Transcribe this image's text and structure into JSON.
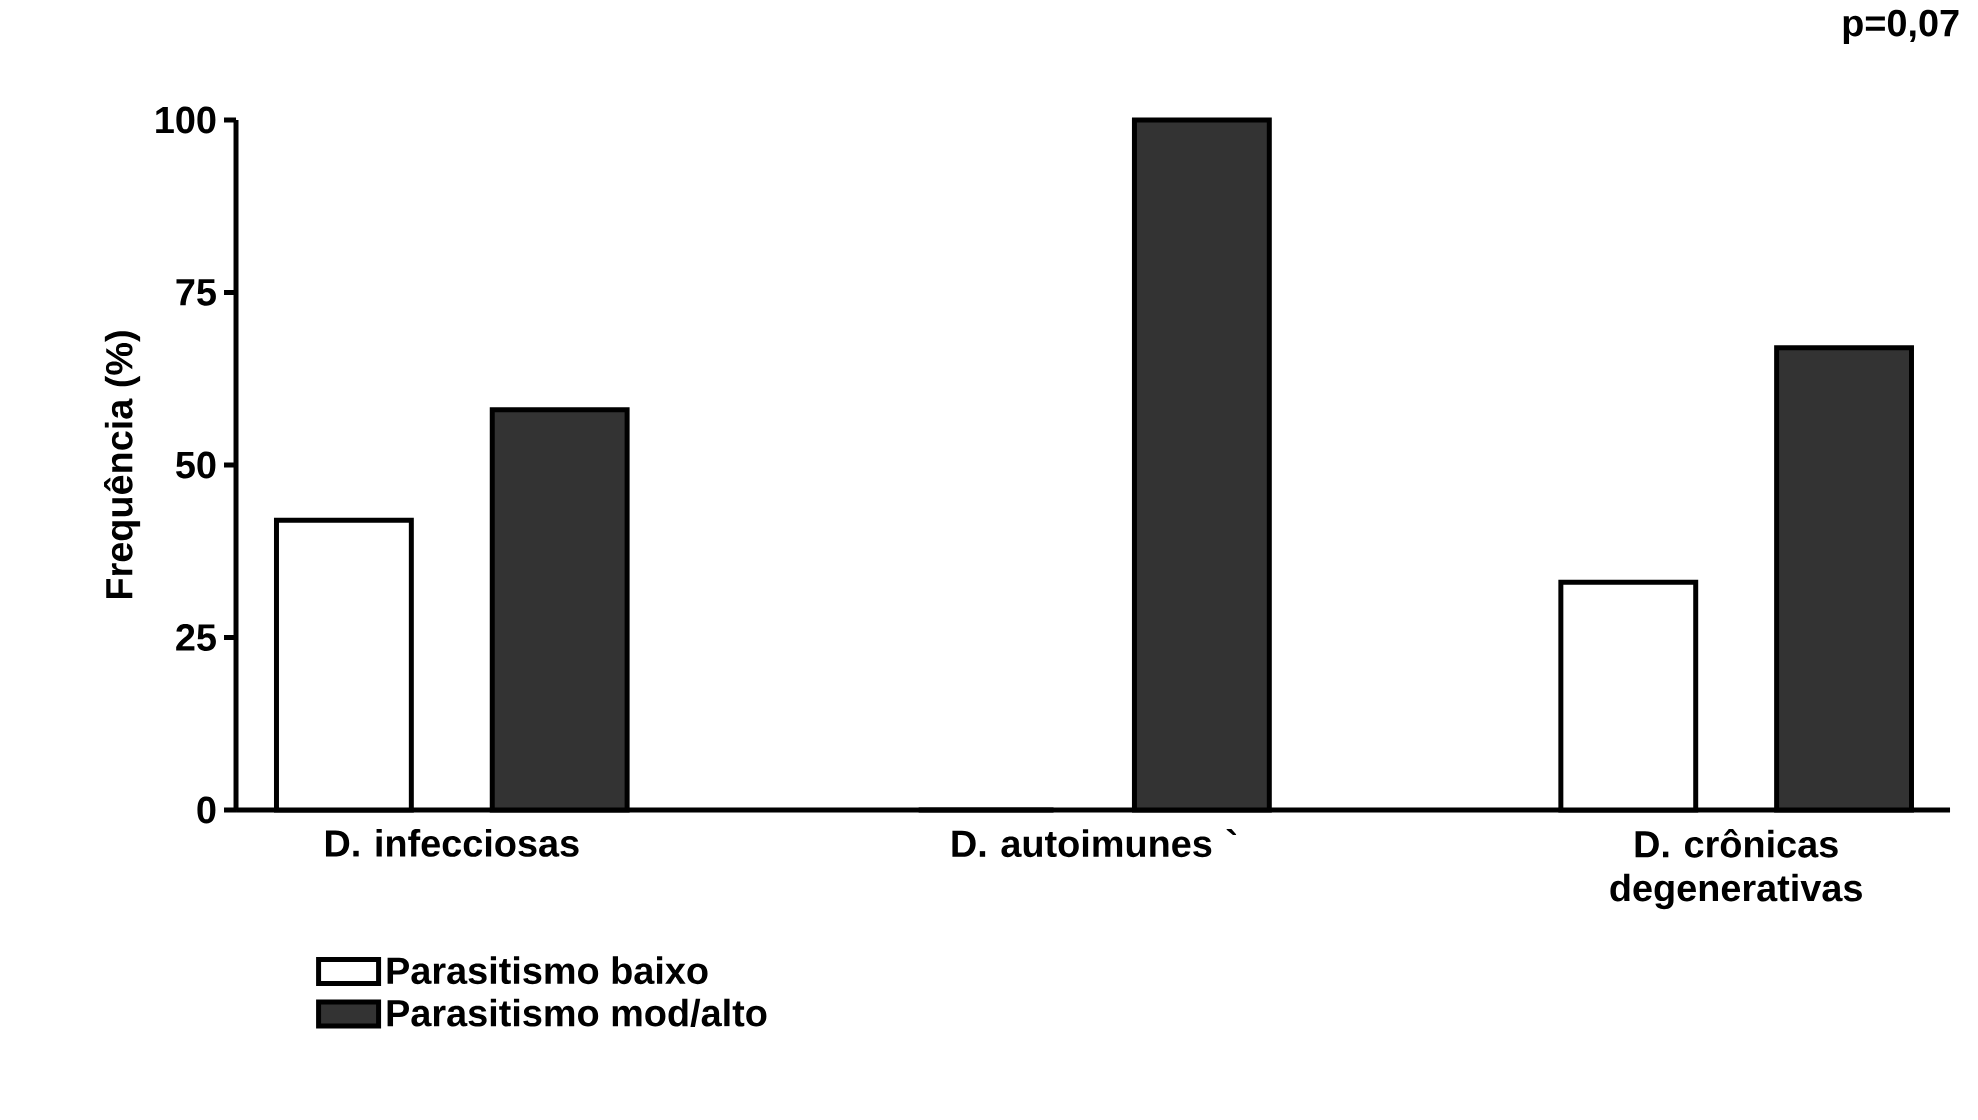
{
  "chart_data": {
    "type": "bar",
    "ylabel": "Frequência (%)",
    "categories": [
      "D. infecciosas",
      "D. autoimunes `",
      "D. crônicas degenerativas"
    ],
    "series": [
      {
        "name": "Parasitismo baixo",
        "color": "#ffffff",
        "values": [
          42,
          0,
          33
        ]
      },
      {
        "name": "Parasitismo mod/alto",
        "color": "#333333",
        "values": [
          58,
          100,
          67
        ]
      }
    ],
    "ylim": [
      0,
      100
    ],
    "yticks": [
      0,
      25,
      50,
      75,
      100
    ],
    "legend": "bottom left",
    "annotations": [
      "p=0,07"
    ]
  }
}
